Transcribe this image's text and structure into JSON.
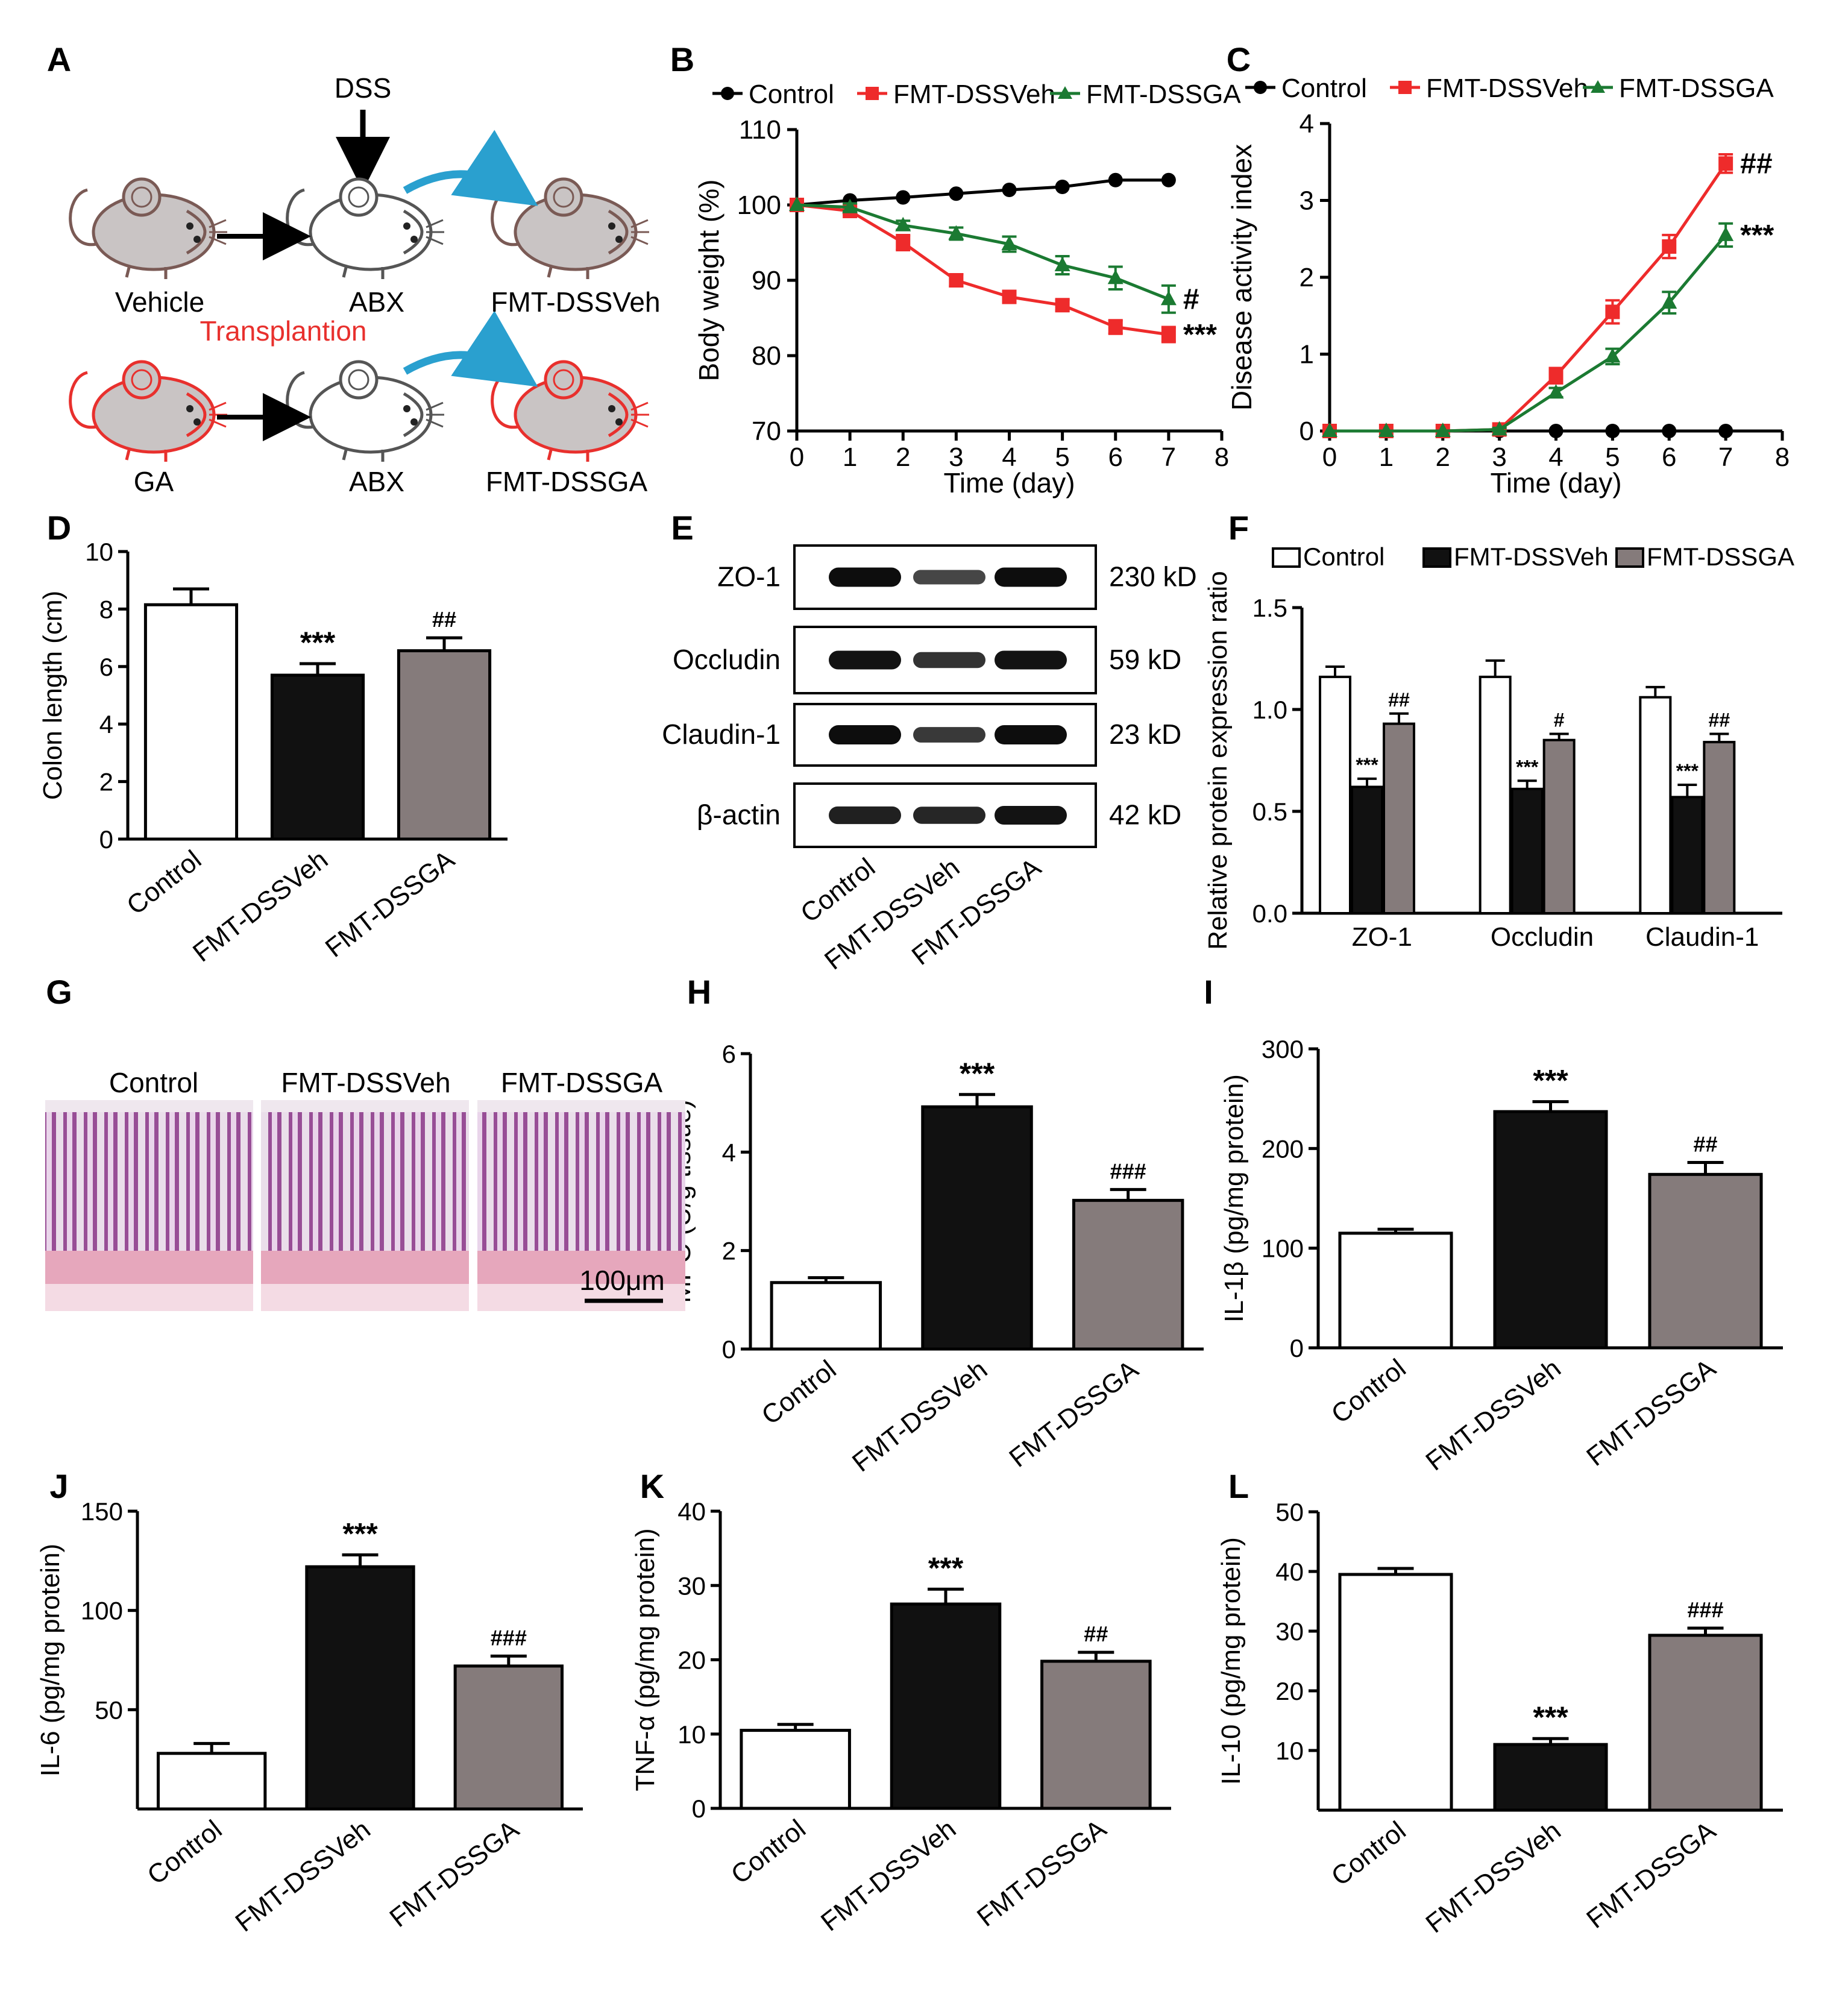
{
  "panel_letters": [
    "A",
    "B",
    "C",
    "D",
    "E",
    "F",
    "G",
    "H",
    "I",
    "J",
    "K",
    "L"
  ],
  "schematic": {
    "dss": "DSS",
    "vehicle": "Vehicle",
    "abx": "ABX",
    "fmt_dssveh": "FMT-DSSVeh",
    "transplantion": "Transplantion",
    "ga": "GA",
    "fmt_dssga": "FMT-DSSGA"
  },
  "groups": [
    "Control",
    "FMT-DSSVeh",
    "FMT-DSSGA"
  ],
  "colors": {
    "control_line": "#000000",
    "dssveh_line": "#ee2b2b",
    "dssga_line": "#1b7a32",
    "bar_control": "#ffffff",
    "bar_dssveh": "#111111",
    "bar_dssga": "#857b7b",
    "accent_red": "#e8302d",
    "arrow_blue": "#2aa0cf",
    "mouse_gray": "#c9c4c4",
    "mouse_brown": "#7a5a55"
  },
  "histology": {
    "labels": [
      "Control",
      "FMT-DSSVeh",
      "FMT-DSSGA"
    ],
    "scale_bar": "100μm"
  },
  "western": {
    "bands": [
      "ZO-1",
      "Occludin",
      "Claudin-1",
      "β-actin"
    ],
    "sizes": [
      "230 kD",
      "59 kD",
      "23 kD",
      "42 kD"
    ],
    "lanes": [
      "Control",
      "FMT-DSSVeh",
      "FMT-DSSGA"
    ],
    "intensity": [
      [
        1.0,
        0.55,
        1.0
      ],
      [
        0.95,
        0.7,
        0.95
      ],
      [
        1.0,
        0.65,
        1.0
      ],
      [
        0.85,
        0.8,
        0.95
      ]
    ]
  },
  "chart_data": [
    {
      "id": "B",
      "type": "line",
      "xlabel": "Time (day)",
      "ylabel": "Body weight (%)",
      "xlim": [
        0,
        8
      ],
      "ylim": [
        70,
        110
      ],
      "xticks": [
        "0",
        "1",
        "2",
        "3",
        "4",
        "5",
        "6",
        "7",
        "8"
      ],
      "yticks": [
        "70",
        "80",
        "90",
        "100",
        "110"
      ],
      "legend": [
        "Control",
        "FMT-DSSVeh",
        "FMT-DSSGA"
      ],
      "series": [
        {
          "name": "Control",
          "marker": "circle",
          "x": [
            0,
            1,
            2,
            3,
            4,
            5,
            6,
            7
          ],
          "values": [
            100,
            100.6,
            101,
            101.5,
            102,
            102.4,
            103.3,
            103.3
          ],
          "err": [
            0,
            0,
            0,
            0,
            0,
            0,
            0,
            0
          ]
        },
        {
          "name": "FMT-DSSVeh",
          "marker": "square",
          "x": [
            0,
            1,
            2,
            3,
            4,
            5,
            6,
            7
          ],
          "values": [
            100,
            99.2,
            95,
            90,
            87.8,
            86.7,
            83.8,
            82.8
          ],
          "err": [
            0,
            0.5,
            1,
            0.8,
            0.6,
            0.7,
            0.9,
            1
          ]
        },
        {
          "name": "FMT-DSSGA",
          "marker": "triangle",
          "x": [
            0,
            1,
            2,
            3,
            4,
            5,
            6,
            7
          ],
          "values": [
            100,
            99.7,
            97.3,
            96.2,
            94.8,
            92,
            90.3,
            87.5
          ],
          "err": [
            0,
            0.5,
            0.6,
            0.8,
            1,
            1.2,
            1.5,
            1.8
          ]
        }
      ],
      "annotations": [
        {
          "label": "#",
          "x": 7,
          "y": 87.5
        },
        {
          "label": "***",
          "x": 7,
          "y": 82.8
        }
      ]
    },
    {
      "id": "C",
      "type": "line",
      "xlabel": "Time (day)",
      "ylabel": "Disease activity index",
      "xlim": [
        0,
        8
      ],
      "ylim": [
        0,
        4
      ],
      "xticks": [
        "0",
        "1",
        "2",
        "3",
        "4",
        "5",
        "6",
        "7",
        "8"
      ],
      "yticks": [
        "0",
        "1",
        "2",
        "3",
        "4"
      ],
      "legend": [
        "Control",
        "FMT-DSSVeh",
        "FMT-DSSGA"
      ],
      "series": [
        {
          "name": "Control",
          "marker": "circle",
          "x": [
            0,
            1,
            2,
            3,
            4,
            5,
            6,
            7
          ],
          "values": [
            0,
            0,
            0,
            0,
            0,
            0,
            0,
            0
          ],
          "err": [
            0,
            0,
            0,
            0,
            0,
            0,
            0,
            0
          ]
        },
        {
          "name": "FMT-DSSVeh",
          "marker": "square",
          "x": [
            0,
            1,
            2,
            3,
            4,
            5,
            6,
            7
          ],
          "values": [
            0,
            0,
            0,
            0.02,
            0.72,
            1.55,
            2.4,
            3.48
          ],
          "err": [
            0,
            0,
            0,
            0.02,
            0.1,
            0.15,
            0.15,
            0.12
          ]
        },
        {
          "name": "FMT-DSSGA",
          "marker": "triangle",
          "x": [
            0,
            1,
            2,
            3,
            4,
            5,
            6,
            7
          ],
          "values": [
            0,
            0,
            0,
            0.02,
            0.5,
            0.97,
            1.67,
            2.55
          ],
          "err": [
            0,
            0,
            0,
            0.02,
            0.06,
            0.1,
            0.14,
            0.15
          ]
        }
      ],
      "annotations": [
        {
          "label": "##",
          "x": 7,
          "y": 3.48
        },
        {
          "label": "***",
          "x": 7,
          "y": 2.55
        }
      ]
    },
    {
      "id": "D",
      "type": "bar",
      "ylabel": "Colon length (cm)",
      "ylim": [
        0,
        10
      ],
      "yticks": [
        "0",
        "2",
        "4",
        "6",
        "8",
        "10"
      ],
      "categories": [
        "Control",
        "FMT-DSSVeh",
        "FMT-DSSGA"
      ],
      "values": [
        8.15,
        5.7,
        6.55
      ],
      "err": [
        0.55,
        0.4,
        0.45
      ],
      "annotations": [
        "",
        "***",
        "##"
      ]
    },
    {
      "id": "F",
      "type": "bar",
      "ylabel": "Relative protein expression ratio",
      "ylim": [
        0,
        1.5
      ],
      "yticks": [
        "0.0",
        "0.5",
        "1.0",
        "1.5"
      ],
      "categories": [
        "ZO-1",
        "Occludin",
        "Claudin-1"
      ],
      "legend": [
        "Control",
        "FMT-DSSVeh",
        "FMT-DSSGA"
      ],
      "series": [
        {
          "name": "Control",
          "values": [
            1.16,
            1.16,
            1.06
          ],
          "err": [
            0.05,
            0.08,
            0.05
          ]
        },
        {
          "name": "FMT-DSSVeh",
          "values": [
            0.62,
            0.61,
            0.57
          ],
          "err": [
            0.04,
            0.04,
            0.06
          ]
        },
        {
          "name": "FMT-DSSGA",
          "values": [
            0.93,
            0.85,
            0.84
          ],
          "err": [
            0.05,
            0.03,
            0.04
          ]
        }
      ],
      "annotations": [
        [
          "",
          "***",
          "##"
        ],
        [
          "",
          "***",
          "#"
        ],
        [
          "",
          "***",
          "##"
        ]
      ]
    },
    {
      "id": "H",
      "type": "bar",
      "ylabel": "MPO (U/g tissue)",
      "ylim": [
        0,
        6
      ],
      "yticks": [
        "0",
        "2",
        "4",
        "6"
      ],
      "categories": [
        "Control",
        "FMT-DSSVeh",
        "FMT-DSSGA"
      ],
      "values": [
        1.35,
        4.92,
        3.02
      ],
      "err": [
        0.1,
        0.25,
        0.22
      ],
      "annotations": [
        "",
        "***",
        "###"
      ]
    },
    {
      "id": "I",
      "type": "bar",
      "ylabel": "IL-1β (pg/mg protein)",
      "ylim": [
        0,
        300
      ],
      "yticks": [
        "0",
        "100",
        "200",
        "300"
      ],
      "categories": [
        "Control",
        "FMT-DSSVeh",
        "FMT-DSSGA"
      ],
      "values": [
        115,
        237,
        174
      ],
      "err": [
        4,
        10,
        12
      ],
      "annotations": [
        "",
        "***",
        "##"
      ]
    },
    {
      "id": "J",
      "type": "bar",
      "ylabel": "IL-6 (pg/mg protein)",
      "ylim": [
        0,
        150
      ],
      "yticks": [
        "50",
        "100",
        "150"
      ],
      "categories": [
        "Control",
        "FMT-DSSVeh",
        "FMT-DSSGA"
      ],
      "values": [
        28,
        122,
        72
      ],
      "err": [
        5,
        6,
        5
      ],
      "annotations": [
        "",
        "***",
        "###"
      ]
    },
    {
      "id": "K",
      "type": "bar",
      "ylabel": "TNF-α (pg/mg protein)",
      "ylim": [
        0,
        40
      ],
      "yticks": [
        "0",
        "10",
        "20",
        "30",
        "40"
      ],
      "categories": [
        "Control",
        "FMT-DSSVeh",
        "FMT-DSSGA"
      ],
      "values": [
        10.5,
        27.5,
        19.8
      ],
      "err": [
        0.8,
        2,
        1.2
      ],
      "annotations": [
        "",
        "***",
        "##"
      ]
    },
    {
      "id": "L",
      "type": "bar",
      "ylabel": "IL-10 (pg/mg protein)",
      "ylim": [
        0,
        50
      ],
      "yticks": [
        "10",
        "20",
        "30",
        "40",
        "50"
      ],
      "categories": [
        "Control",
        "FMT-DSSVeh",
        "FMT-DSSGA"
      ],
      "values": [
        39.5,
        11,
        29.3
      ],
      "err": [
        1,
        1,
        1.2
      ],
      "annotations": [
        "",
        "***",
        "###"
      ]
    }
  ]
}
